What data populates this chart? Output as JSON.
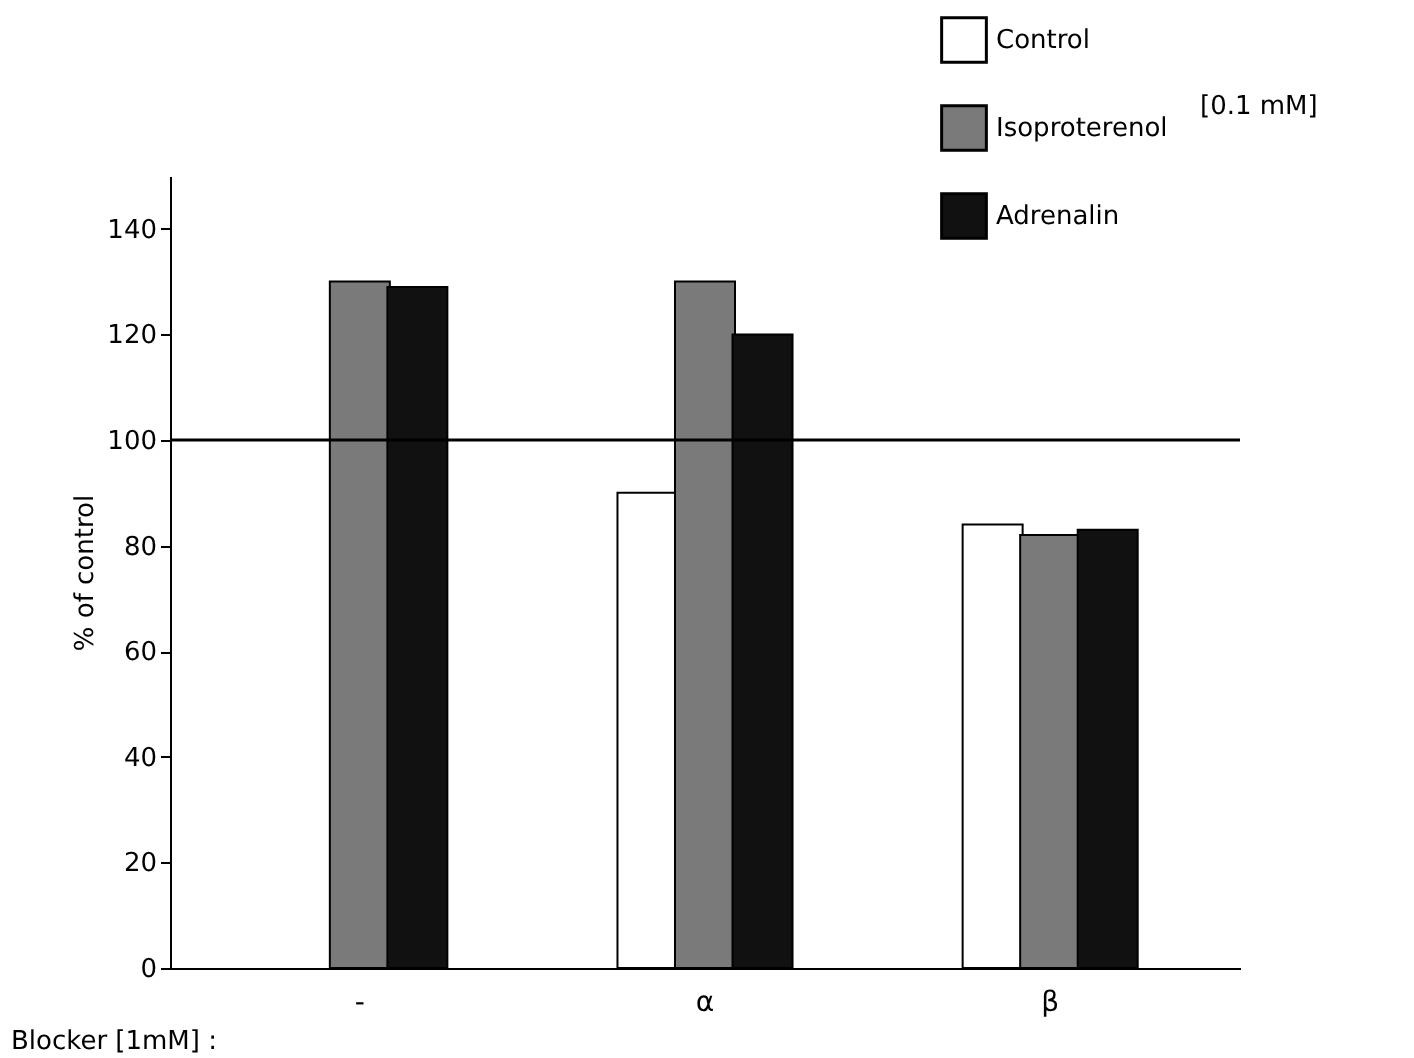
{
  "chart_data": {
    "type": "bar",
    "xlabel": "Blocker [1mM] :",
    "ylabel": "% of control",
    "categories": [
      "-",
      "α",
      "β"
    ],
    "series": [
      {
        "name": "Control",
        "color": "#ffffff",
        "values": [
          null,
          90,
          84
        ]
      },
      {
        "name": "Isoproterenol",
        "color": "#7a7a7a",
        "values": [
          130,
          130,
          82
        ]
      },
      {
        "name": "Adrenalin",
        "color": "#111111",
        "values": [
          129,
          120,
          83
        ]
      }
    ],
    "ylim": [
      0,
      150
    ],
    "yticks": [
      0,
      20,
      40,
      60,
      80,
      100,
      120,
      140
    ],
    "ref_lines": [
      {
        "axis": "y",
        "value": 100
      }
    ],
    "annotations": [
      "[0.1 mM]"
    ],
    "grid": false,
    "legend": "top right"
  }
}
